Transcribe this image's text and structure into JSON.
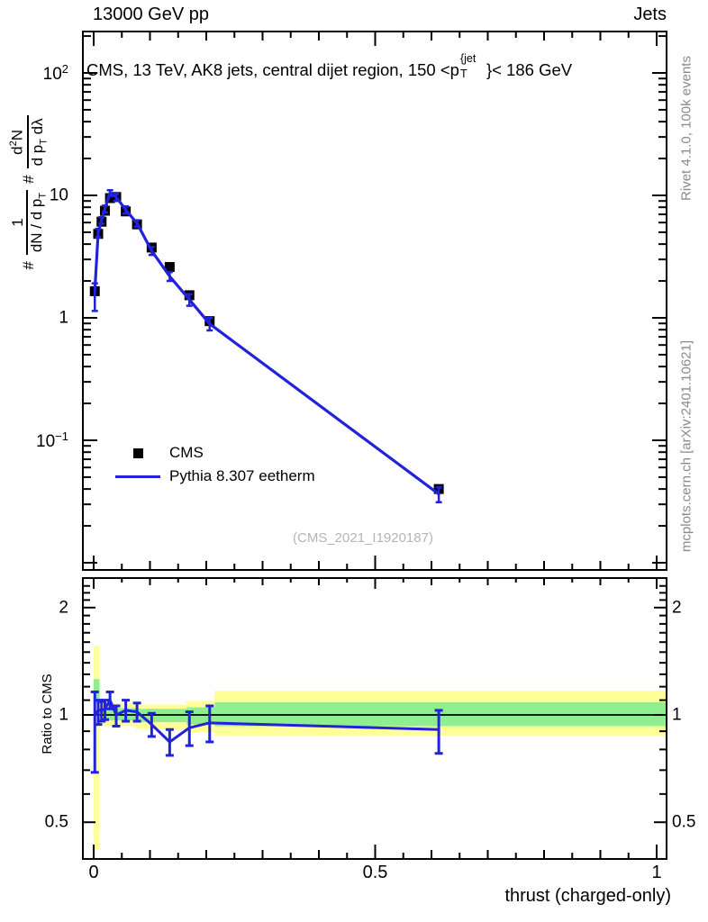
{
  "header": {
    "left": "13000 GeV pp",
    "right": "Jets"
  },
  "panel_title": {
    "pre": "CMS, 13 TeV, AK8 jets, central dijet region, 150 <p",
    "sup": "{jet",
    "sub": "T",
    "post": "}< 186 GeV"
  },
  "ylabel": {
    "h1": "#",
    "f1num": "1",
    "f1den_a": "dN / d p",
    "f1den_sub": "T",
    "h2": "#",
    "f2num_a": "d",
    "f2num_sup": "2",
    "f2num_b": "N",
    "f2den_a": "d p",
    "f2den_sub": "T",
    "f2den_b": " dλ"
  },
  "ratio_ylabel": "Ratio to CMS",
  "xlabel": "thrust (charged-only)",
  "watermark": "(CMS_2021_I1920187)",
  "side_notes": {
    "top": "Rivet 4.1.0,  100k events",
    "bottom": "mcplots.cern.ch [arXiv:2401.10621]"
  },
  "legend": [
    {
      "label": "CMS",
      "marker": "filled-square",
      "color": "#000000"
    },
    {
      "label": "Pythia 8.307 eetherm",
      "marker": "line",
      "color": "#2222dd"
    }
  ],
  "axes": {
    "x_ticks": [
      {
        "v": 0,
        "label": "0"
      },
      {
        "v": 0.5,
        "label": "0.5"
      },
      {
        "v": 1,
        "label": "1"
      }
    ],
    "y_ticks_main": [
      {
        "v": 100,
        "label": "10^2"
      },
      {
        "v": 10,
        "label": "10"
      },
      {
        "v": 1,
        "label": "1"
      },
      {
        "v": 0.1,
        "label": "10^-1"
      }
    ],
    "y_ticks_ratio": [
      {
        "v": 2,
        "label": "2"
      },
      {
        "v": 1,
        "label": "1"
      },
      {
        "v": 0.5,
        "label": "0.5"
      }
    ]
  },
  "colors": {
    "mc_line": "#2222dd",
    "data_marker": "#000000",
    "band_yellow": "#ffff99",
    "band_green": "#8fee90",
    "ref_line": "#000000",
    "gray_note": "#8a8a8a",
    "watermark": "#b5b5b5",
    "frame": "#000000"
  },
  "chart_data": {
    "type": "line",
    "title": "CMS, 13 TeV, AK8 jets, central dijet region, 150 < pT^{jet} < 186 GeV",
    "xlabel": "thrust (charged-only)",
    "ylabel": "# 1/(dN / d pT) # d2N/(d pT dLambda)",
    "ylabel_ratio": "Ratio to CMS",
    "xlim": [
      -0.019,
      1.018
    ],
    "ylim_main_log": [
      0.0087,
      215
    ],
    "ylim_ratio_log": [
      0.4,
      2.42
    ],
    "grid": false,
    "legend_position": "inside-middle-left",
    "x": [
      0.002,
      0.008,
      0.014,
      0.02,
      0.029,
      0.04,
      0.057,
      0.077,
      0.103,
      0.135,
      0.17,
      0.206,
      0.613
    ],
    "series": [
      {
        "name": "CMS",
        "type": "scatter",
        "marker": "filled-square",
        "color": "#000000",
        "values": [
          1.65,
          4.85,
          6.1,
          7.5,
          9.5,
          9.7,
          7.4,
          5.8,
          3.75,
          2.6,
          1.53,
          0.94,
          0.04
        ]
      },
      {
        "name": "Pythia 8.307 eetherm",
        "type": "line",
        "color": "#2222dd",
        "ratio_to_cms": [
          1.0,
          1.03,
          1.03,
          1.04,
          1.1,
          1.0,
          1.03,
          1.02,
          0.94,
          0.84,
          0.92,
          0.95,
          0.91
        ],
        "ratio_err_up": [
          0.16,
          0.07,
          0.06,
          0.06,
          0.06,
          0.06,
          0.07,
          0.06,
          0.07,
          0.07,
          0.1,
          0.11,
          0.12
        ],
        "ratio_err_dn": [
          0.31,
          0.09,
          0.07,
          0.07,
          0.06,
          0.07,
          0.07,
          0.06,
          0.07,
          0.07,
          0.1,
          0.11,
          0.13
        ]
      }
    ],
    "ratio_bands": {
      "yellow": [
        {
          "x0": 0.0,
          "x1": 0.0105,
          "lo": 0.42,
          "hi": 1.56
        },
        {
          "x0": 0.0105,
          "x1": 0.075,
          "lo": 0.93,
          "hi": 1.08
        },
        {
          "x0": 0.075,
          "x1": 0.165,
          "lo": 0.91,
          "hi": 1.07
        },
        {
          "x0": 0.165,
          "x1": 0.215,
          "lo": 0.895,
          "hi": 1.095
        },
        {
          "x0": 0.215,
          "x1": 1.018,
          "lo": 0.875,
          "hi": 1.17
        }
      ],
      "green": [
        {
          "x0": 0.0,
          "x1": 0.0105,
          "lo": 1.08,
          "hi": 1.26
        },
        {
          "x0": 0.0105,
          "x1": 0.075,
          "lo": 0.965,
          "hi": 1.045
        },
        {
          "x0": 0.075,
          "x1": 0.165,
          "lo": 0.955,
          "hi": 1.04
        },
        {
          "x0": 0.165,
          "x1": 0.215,
          "lo": 0.94,
          "hi": 1.05
        },
        {
          "x0": 0.215,
          "x1": 1.018,
          "lo": 0.93,
          "hi": 1.085
        }
      ]
    }
  }
}
